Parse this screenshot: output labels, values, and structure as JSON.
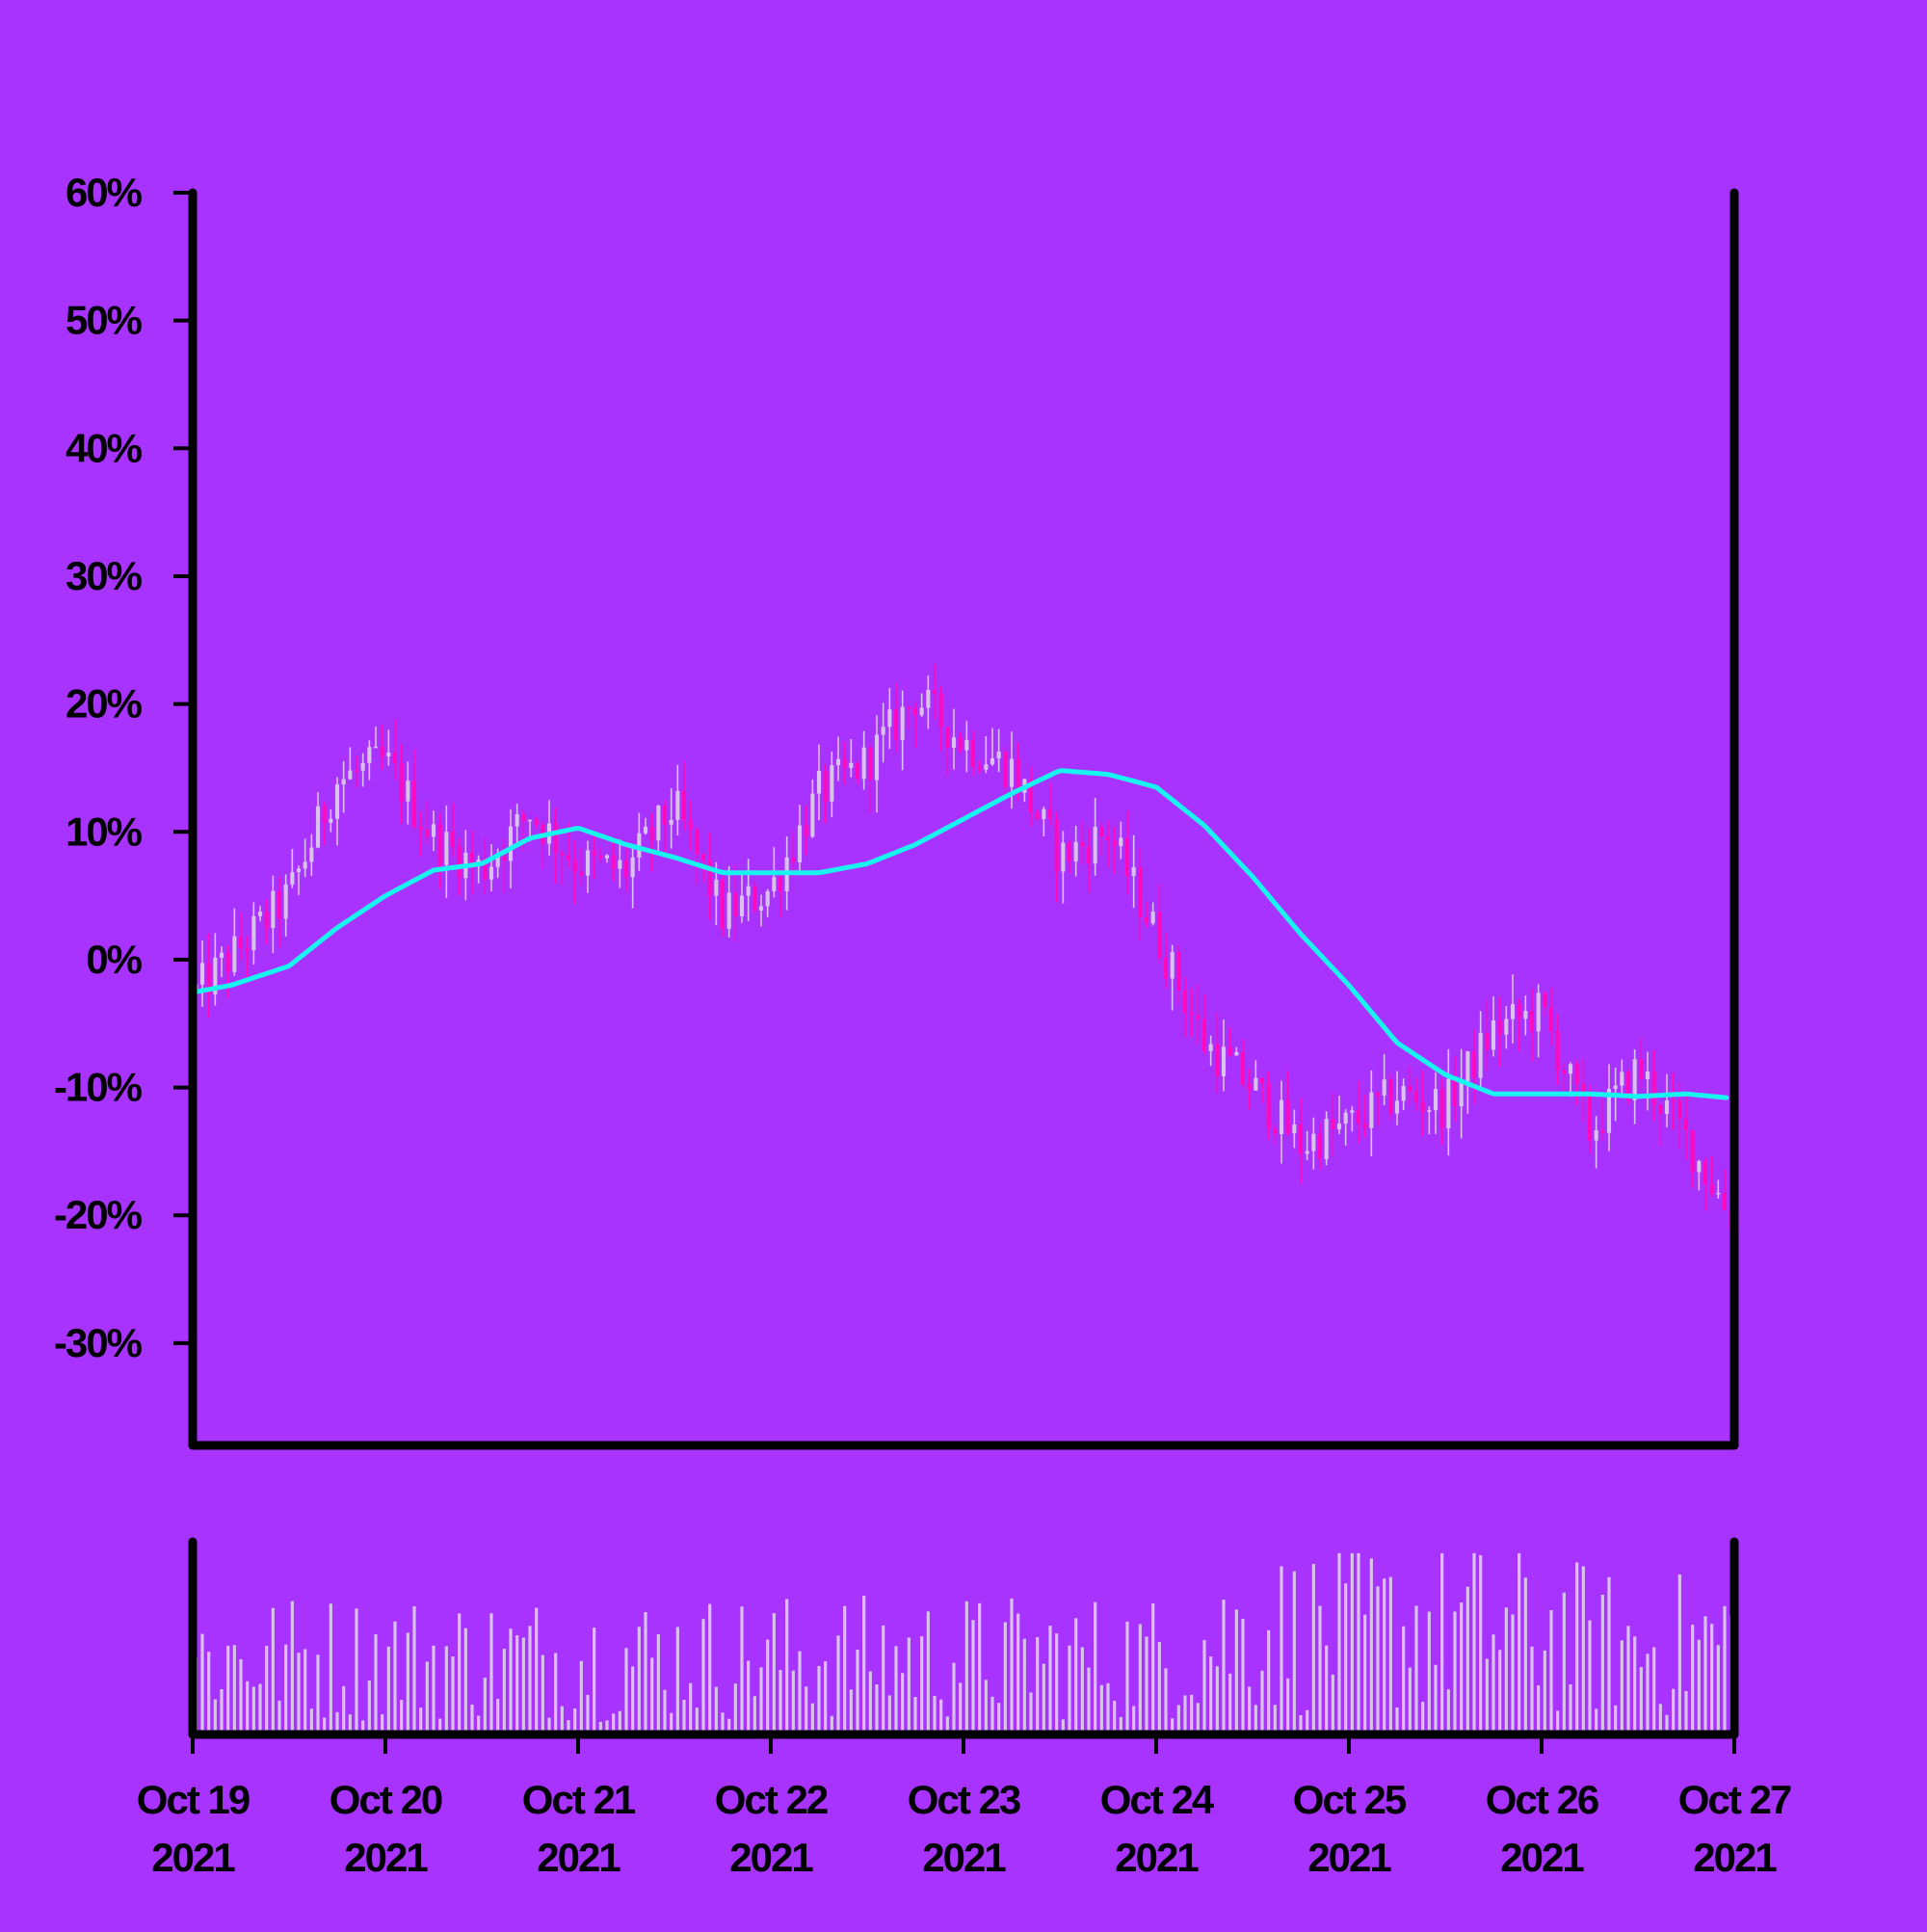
{
  "chart_data": {
    "type": "candlestick",
    "colors": {
      "background": "#a833ff",
      "frame": "#000000",
      "up_candle": "#d9c2ee",
      "down_candle": "#ff0bbd",
      "moving_average": "#18f5ee",
      "volume_bar": "#d9c2ee"
    },
    "price_panel": {
      "ylim": [
        -38,
        60
      ],
      "yticks": [
        -30,
        -20,
        -10,
        0,
        10,
        20,
        30,
        40,
        50,
        60
      ],
      "ytick_labels": [
        "-30%",
        "-20%",
        "-10%",
        "0%",
        "10%",
        "20%",
        "30%",
        "40%",
        "50%",
        "60%"
      ],
      "grid": false
    },
    "xaxis": {
      "ticks": [
        {
          "line1": "Oct 19",
          "line2": "2021"
        },
        {
          "line1": "Oct 20",
          "line2": "2021"
        },
        {
          "line1": "Oct 21",
          "line2": "2021"
        },
        {
          "line1": "Oct 22",
          "line2": "2021"
        },
        {
          "line1": "Oct 23",
          "line2": "2021"
        },
        {
          "line1": "Oct 24",
          "line2": "2021"
        },
        {
          "line1": "Oct 25",
          "line2": "2021"
        },
        {
          "line1": "Oct 26",
          "line2": "2021"
        },
        {
          "line1": "Oct 27",
          "line2": "2021"
        }
      ],
      "range_days": [
        0,
        8
      ]
    },
    "close_path": {
      "t_days": [
        0.02,
        0.25,
        0.5,
        0.75,
        1.0,
        1.25,
        1.5,
        1.75,
        2.0,
        2.25,
        2.5,
        2.75,
        3.0,
        3.25,
        3.5,
        3.75,
        4.0,
        4.25,
        4.5,
        4.75,
        5.0,
        5.25,
        5.5,
        5.75,
        6.0,
        6.25,
        6.5,
        6.75,
        7.0,
        7.25,
        7.5,
        7.75,
        8.0
      ],
      "percent": [
        -2.5,
        1.0,
        5.0,
        14.0,
        15.5,
        9.5,
        7.0,
        11.5,
        7.5,
        7.0,
        12.0,
        3.5,
        5.5,
        13.0,
        15.5,
        20.5,
        17.0,
        15.0,
        8.0,
        10.0,
        2.0,
        -6.5,
        -10.0,
        -14.5,
        -13.0,
        -10.5,
        -11.5,
        -5.5,
        -4.0,
        -13.5,
        -8.5,
        -14.0,
        -20.5
      ]
    },
    "moving_average": {
      "t_days": [
        0.02,
        0.2,
        0.5,
        0.75,
        1.0,
        1.25,
        1.5,
        1.75,
        2.0,
        2.25,
        2.5,
        2.75,
        3.0,
        3.25,
        3.5,
        3.75,
        4.0,
        4.25,
        4.5,
        4.75,
        5.0,
        5.25,
        5.5,
        5.75,
        6.0,
        6.25,
        6.5,
        6.75,
        7.0,
        7.25,
        7.5,
        7.75,
        7.96
      ],
      "percent": [
        -2.5,
        -2.0,
        -0.5,
        2.5,
        5.0,
        7.0,
        7.5,
        9.5,
        10.3,
        9.0,
        8.0,
        6.8,
        6.8,
        6.8,
        7.5,
        9.0,
        11.0,
        13.0,
        14.8,
        14.5,
        13.5,
        10.5,
        6.5,
        2.0,
        -2.0,
        -6.5,
        -9.0,
        -10.5,
        -10.5,
        -10.5,
        -10.7,
        -10.5,
        -10.8
      ]
    },
    "volume_panel": {
      "ylim": [
        0,
        1
      ],
      "description_free": true,
      "relative_level_path": {
        "t_days": [
          0,
          1,
          2,
          3,
          4,
          5,
          5.5,
          6,
          6.5,
          7,
          7.5,
          8
        ],
        "level": [
          0.45,
          0.45,
          0.45,
          0.45,
          0.45,
          0.45,
          0.6,
          0.6,
          0.65,
          0.6,
          0.5,
          0.55
        ]
      }
    },
    "n_candles": 240
  }
}
